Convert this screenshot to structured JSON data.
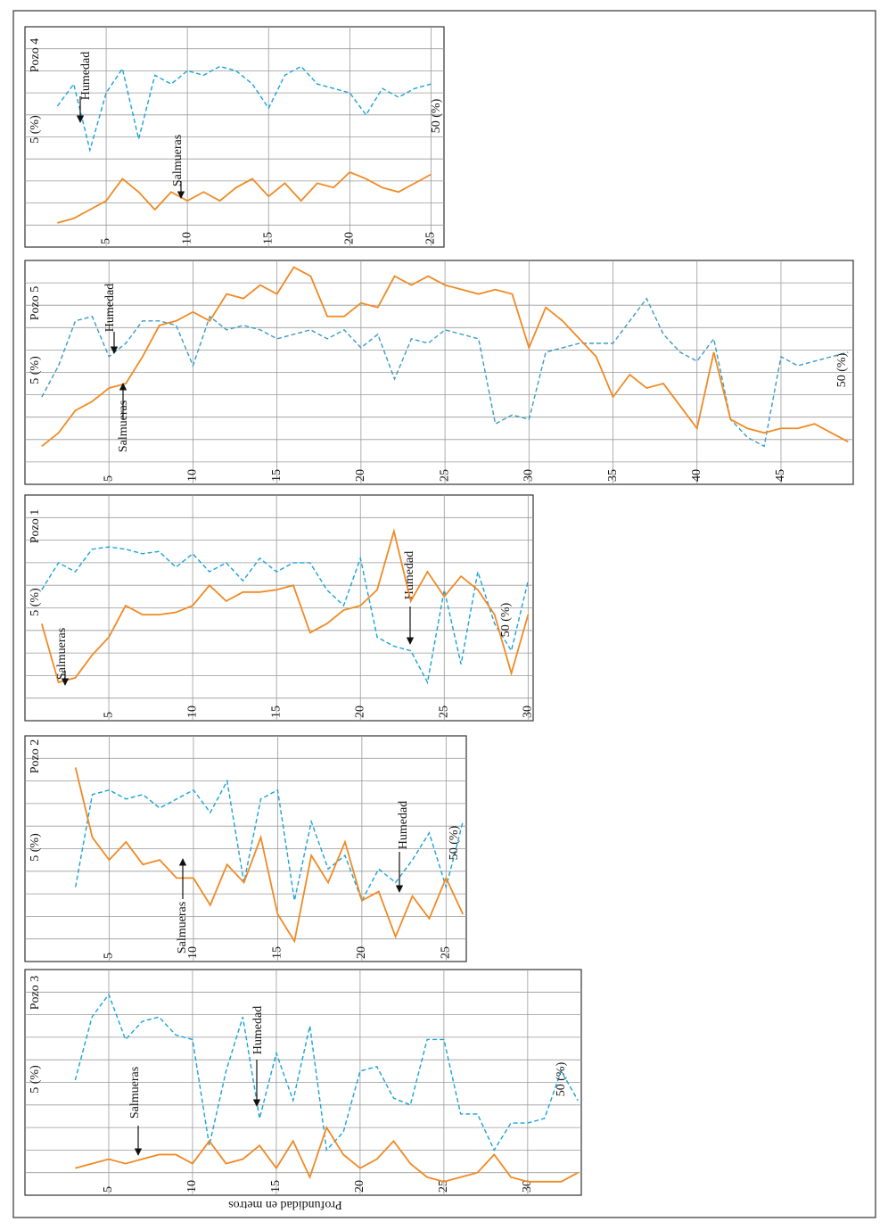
{
  "xlabel": "Profundidad en metros",
  "chart_data": [
    {
      "type": "line",
      "title": "Pozo 4",
      "annotations": [
        "5 (%)",
        "50 (%)"
      ],
      "x": [
        2,
        3,
        4,
        5,
        6,
        7,
        8,
        9,
        10,
        11,
        12,
        13,
        14,
        15,
        16,
        17,
        18,
        19,
        20,
        21,
        22,
        23,
        24,
        25
      ],
      "xlim": [
        0,
        25.8
      ],
      "xticks": [
        5,
        10,
        15,
        20,
        25
      ],
      "ylim": [
        0,
        10
      ],
      "grid": true,
      "series": [
        {
          "name": "Humedad",
          "color": "#1aa3d9",
          "linestyle": "dashed",
          "values": [
            6.4,
            7.4,
            4.4,
            7.0,
            8.1,
            4.9,
            7.8,
            7.4,
            8.0,
            7.8,
            8.2,
            8.0,
            7.4,
            6.3,
            7.8,
            8.2,
            7.4,
            7.2,
            7.0,
            6.0,
            7.2,
            6.8,
            7.2,
            7.4
          ]
        },
        {
          "name": "Salmueras",
          "color": "#f08a24",
          "linestyle": "solid",
          "values": [
            1.1,
            1.3,
            1.7,
            2.1,
            3.1,
            2.5,
            1.7,
            2.5,
            2.1,
            2.5,
            2.1,
            2.7,
            3.1,
            2.3,
            2.9,
            2.1,
            2.9,
            2.7,
            3.4,
            3.1,
            2.7,
            2.5,
            2.9,
            3.3
          ]
        }
      ]
    },
    {
      "type": "line",
      "title": "Pozo 5",
      "annotations": [
        "5 (%)",
        "50 (%)"
      ],
      "x": [
        1,
        2,
        3,
        4,
        5,
        6,
        7,
        8,
        9,
        10,
        11,
        12,
        13,
        14,
        15,
        16,
        17,
        18,
        19,
        20,
        21,
        22,
        23,
        24,
        25,
        26,
        27,
        28,
        29,
        30,
        31,
        32,
        33,
        34,
        35,
        36,
        37,
        38,
        39,
        40,
        41,
        42,
        43,
        44,
        45,
        46,
        47,
        48,
        49
      ],
      "xlim": [
        0,
        49.3
      ],
      "xticks": [
        5,
        10,
        15,
        20,
        25,
        30,
        35,
        40,
        45
      ],
      "ylim": [
        0,
        10
      ],
      "grid": true,
      "series": [
        {
          "name": "Humedad",
          "color": "#3a9cc4",
          "linestyle": "dashed",
          "values": [
            3.9,
            5.3,
            7.3,
            7.5,
            5.7,
            6.3,
            7.3,
            7.3,
            7.1,
            5.3,
            7.5,
            6.9,
            7.1,
            6.9,
            6.5,
            6.7,
            6.9,
            6.5,
            6.9,
            6.1,
            6.7,
            4.7,
            6.5,
            6.3,
            6.9,
            6.7,
            6.5,
            2.7,
            3.1,
            2.9,
            5.9,
            6.1,
            6.3,
            6.3,
            6.3,
            7.3,
            8.3,
            6.7,
            5.9,
            5.5,
            6.5,
            2.9,
            2.1,
            1.7,
            5.7,
            5.3,
            5.5,
            5.7,
            5.9
          ]
        },
        {
          "name": "Salmueras",
          "color": "#f08a24",
          "linestyle": "solid",
          "values": [
            1.7,
            2.3,
            3.3,
            3.7,
            4.3,
            4.5,
            5.7,
            7.1,
            7.3,
            7.7,
            7.3,
            8.5,
            8.3,
            8.9,
            8.5,
            9.7,
            9.3,
            7.5,
            7.5,
            8.1,
            7.9,
            9.3,
            8.9,
            9.3,
            8.9,
            8.7,
            8.5,
            8.7,
            8.5,
            6.1,
            7.9,
            7.3,
            6.5,
            5.7,
            3.9,
            4.9,
            4.3,
            4.5,
            3.5,
            2.5,
            5.9,
            2.9,
            2.5,
            2.3,
            2.5,
            2.5,
            2.7,
            2.3,
            1.9
          ]
        }
      ]
    },
    {
      "type": "line",
      "title": "Pozo 1",
      "annotations": [
        "5 (%)",
        "50 (%)"
      ],
      "x": [
        1,
        2,
        3,
        4,
        5,
        6,
        7,
        8,
        9,
        10,
        11,
        12,
        13,
        14,
        15,
        16,
        17,
        18,
        19,
        20,
        21,
        22,
        23,
        24,
        25,
        26,
        27,
        28,
        29,
        30
      ],
      "xlim": [
        0,
        30.3
      ],
      "xticks": [
        5,
        10,
        15,
        20,
        25,
        30
      ],
      "ylim": [
        0,
        10
      ],
      "grid": true,
      "series": [
        {
          "name": "Humedad",
          "color": "#1aa3d9",
          "linestyle": "dashed",
          "values": [
            5.8,
            7.0,
            6.6,
            7.6,
            7.7,
            7.6,
            7.4,
            7.5,
            6.8,
            7.4,
            6.6,
            7.0,
            6.2,
            7.2,
            6.6,
            7.0,
            7.0,
            5.8,
            5.1,
            7.2,
            3.7,
            3.3,
            3.1,
            1.7,
            5.8,
            2.5,
            6.6,
            4.3,
            3.1,
            6.2
          ]
        },
        {
          "name": "Salmueras",
          "color": "#f08a24",
          "linestyle": "solid",
          "values": [
            4.3,
            1.7,
            1.9,
            2.9,
            3.7,
            5.1,
            4.7,
            4.7,
            4.8,
            5.1,
            6.0,
            5.3,
            5.7,
            5.7,
            5.8,
            6.0,
            3.9,
            4.3,
            4.9,
            5.1,
            5.8,
            8.4,
            5.3,
            6.6,
            5.5,
            6.4,
            5.8,
            4.7,
            2.1,
            4.7
          ]
        }
      ]
    },
    {
      "type": "line",
      "title": "Pozo 2",
      "annotations": [
        "5 (%)",
        "50 (%)"
      ],
      "x": [
        3,
        4,
        5,
        6,
        7,
        8,
        9,
        10,
        11,
        12,
        13,
        14,
        15,
        16,
        17,
        18,
        19,
        20,
        21,
        22,
        23,
        24,
        25,
        26
      ],
      "xlim": [
        0,
        26.2
      ],
      "xticks": [
        5,
        10,
        15,
        20,
        25
      ],
      "ylim": [
        0,
        10
      ],
      "grid": true,
      "series": [
        {
          "name": "Humedad",
          "color": "#1aa3d9",
          "linestyle": "dashed",
          "values": [
            3.3,
            7.4,
            7.6,
            7.2,
            7.4,
            6.8,
            7.2,
            7.6,
            6.6,
            8.0,
            3.5,
            7.2,
            7.6,
            2.7,
            6.2,
            4.1,
            4.7,
            2.7,
            4.1,
            3.5,
            4.5,
            5.7,
            3.3,
            6.2
          ]
        },
        {
          "name": "Salmueras",
          "color": "#f08a24",
          "linestyle": "solid",
          "values": [
            8.6,
            5.5,
            4.5,
            5.3,
            4.3,
            4.5,
            3.7,
            3.7,
            2.5,
            4.3,
            3.5,
            5.5,
            2.1,
            0.9,
            4.7,
            3.5,
            5.3,
            2.7,
            3.1,
            1.1,
            2.9,
            1.9,
            3.7,
            2.1
          ]
        }
      ]
    },
    {
      "type": "line",
      "title": "Pozo 3",
      "annotations": [
        "5 (%)",
        "50 (%)"
      ],
      "x": [
        3,
        4,
        5,
        6,
        7,
        8,
        9,
        10,
        11,
        12,
        13,
        14,
        15,
        16,
        17,
        18,
        19,
        20,
        21,
        22,
        23,
        24,
        25,
        26,
        27,
        28,
        29,
        30,
        31,
        32,
        33
      ],
      "xlim": [
        0,
        33.2
      ],
      "xticks": [
        5,
        10,
        15,
        20,
        25,
        30
      ],
      "ylim": [
        0,
        10
      ],
      "grid": true,
      "series": [
        {
          "name": "Humedad",
          "color": "#1aa3d9",
          "linestyle": "dashed",
          "values": [
            5.1,
            7.9,
            8.9,
            6.9,
            7.7,
            7.9,
            7.1,
            6.9,
            2.2,
            5.5,
            7.9,
            3.4,
            6.3,
            4.2,
            7.5,
            2.0,
            2.8,
            5.5,
            5.7,
            4.3,
            4.0,
            6.9,
            6.9,
            3.6,
            3.6,
            2.0,
            3.2,
            3.2,
            3.4,
            5.5,
            4.2
          ]
        },
        {
          "name": "Salmueras",
          "color": "#f08a24",
          "linestyle": "solid",
          "values": [
            1.2,
            1.4,
            1.6,
            1.4,
            1.6,
            1.8,
            1.8,
            1.4,
            2.4,
            1.4,
            1.6,
            2.2,
            1.2,
            2.4,
            0.8,
            3.0,
            1.8,
            1.2,
            1.6,
            2.4,
            1.4,
            0.8,
            0.6,
            0.8,
            1.0,
            1.8,
            0.8,
            0.6,
            0.6,
            0.6,
            1.0
          ]
        }
      ]
    }
  ]
}
